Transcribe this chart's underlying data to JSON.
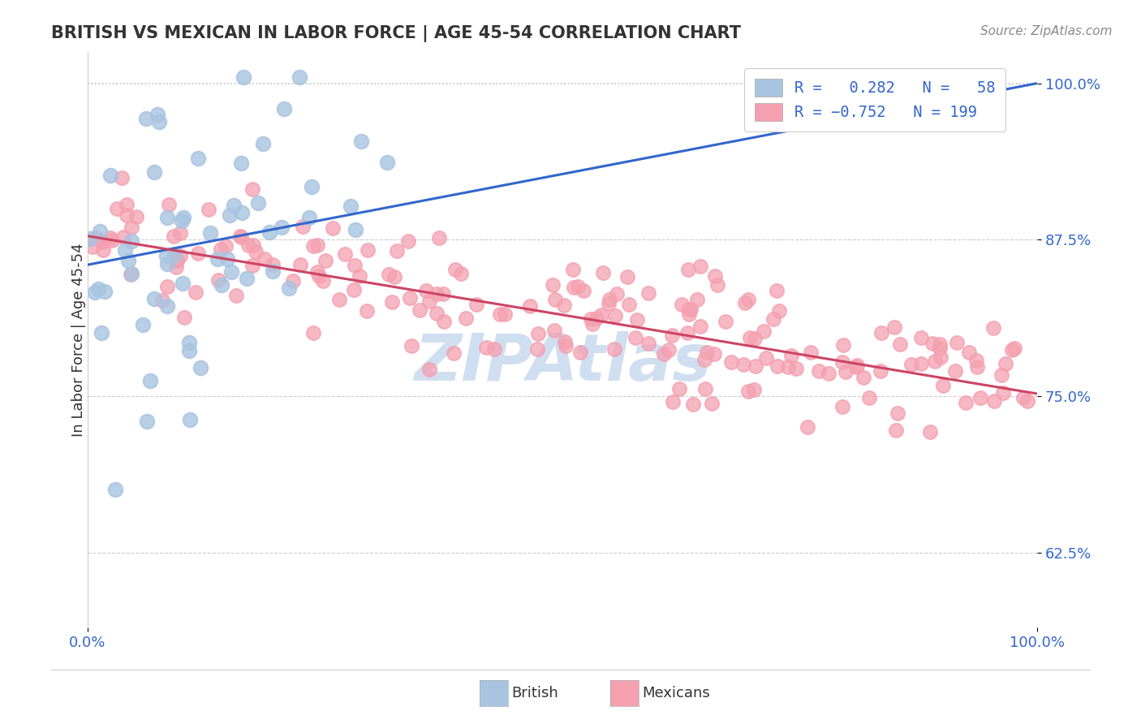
{
  "title": "BRITISH VS MEXICAN IN LABOR FORCE | AGE 45-54 CORRELATION CHART",
  "source": "Source: ZipAtlas.com",
  "ylabel": "In Labor Force | Age 45-54",
  "xlim": [
    0.0,
    1.0
  ],
  "ylim": [
    0.565,
    1.025
  ],
  "yticks": [
    0.625,
    0.75,
    0.875,
    1.0
  ],
  "ytick_labels": [
    "62.5%",
    "75.0%",
    "87.5%",
    "100.0%"
  ],
  "xticks": [
    0.0,
    1.0
  ],
  "xtick_labels": [
    "0.0%",
    "100.0%"
  ],
  "british_R": 0.282,
  "british_N": 58,
  "mexican_R": -0.752,
  "mexican_N": 199,
  "british_color": "#a8c4e0",
  "mexican_color": "#f4a0b0",
  "british_line_color": "#3366cc",
  "mexican_line_color": "#cc4466",
  "title_color": "#333333",
  "source_color": "#888888",
  "watermark_color": "#d0dff0",
  "watermark_text": "ZIPAtlas",
  "legend_text_color": "#3366cc",
  "dotted_line_y": 1.0,
  "background_color": "#ffffff",
  "seed": 42,
  "british_line_y0": 0.855,
  "british_line_y1": 1.0,
  "mexican_line_y0": 0.878,
  "mexican_line_y1": 0.752
}
